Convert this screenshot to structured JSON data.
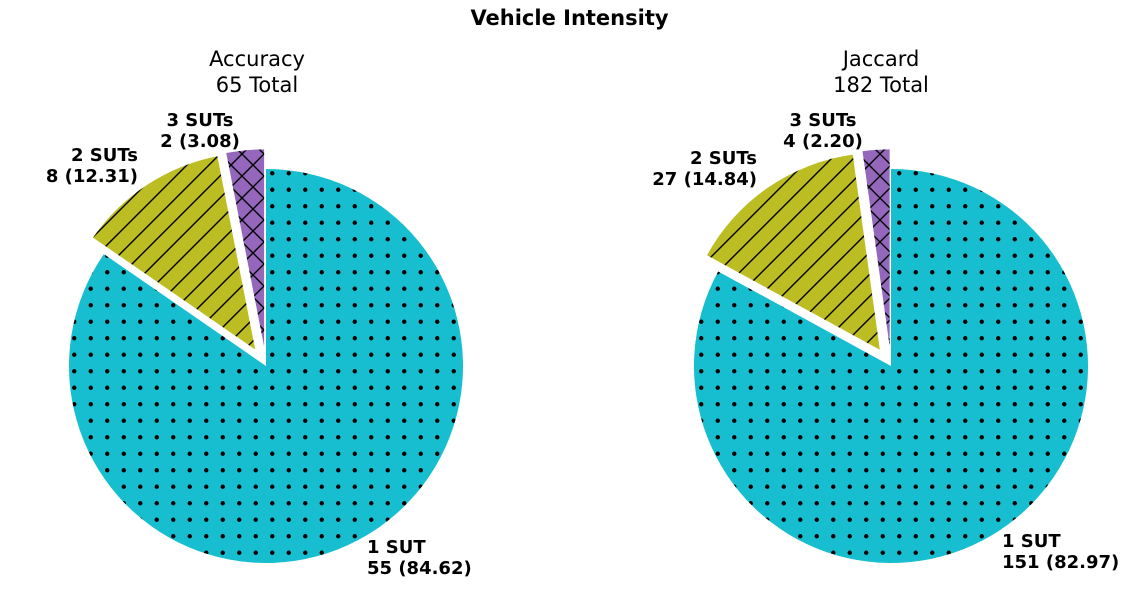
{
  "figure_title": "Vehicle Intensity",
  "colors": {
    "1 SUT": "#17becf",
    "2 SUTs": "#bcbd22",
    "3 SUTs": "#9467bd",
    "pattern_ink": "#000000",
    "edge": "#ffffff"
  },
  "chart_data": [
    {
      "type": "pie",
      "title": "Accuracy",
      "subtitle": "65 Total",
      "start": "top",
      "direction": "clockwise",
      "slices": [
        {
          "name": "1 SUT",
          "count": 55,
          "percent": "84.62",
          "label_count": "55 (84.62)",
          "color": "#17becf",
          "pattern": "dots",
          "explode": 0
        },
        {
          "name": "2 SUTs",
          "count": 8,
          "percent": "12.31",
          "label_count": "8 (12.31)",
          "color": "#bcbd22",
          "pattern": "diagonal-lines",
          "explode": 0.1
        },
        {
          "name": "3 SUTs",
          "count": 2,
          "percent": "3.08",
          "label_count": "2 (3.08)",
          "color": "#9467bd",
          "pattern": "cross-hatch",
          "explode": 0.1
        }
      ]
    },
    {
      "type": "pie",
      "title": "Jaccard",
      "subtitle": "182 Total",
      "start": "top",
      "direction": "clockwise",
      "slices": [
        {
          "name": "1 SUT",
          "count": 151,
          "percent": "82.97",
          "label_count": "151 (82.97)",
          "color": "#17becf",
          "pattern": "dots",
          "explode": 0
        },
        {
          "name": "2 SUTs",
          "count": 27,
          "percent": "14.84",
          "label_count": "27 (14.84)",
          "color": "#bcbd22",
          "pattern": "diagonal-lines",
          "explode": 0.1
        },
        {
          "name": "3 SUTs",
          "count": 4,
          "percent": "2.20",
          "label_count": "4 (2.20)",
          "color": "#9467bd",
          "pattern": "cross-hatch",
          "explode": 0.1
        }
      ]
    }
  ]
}
